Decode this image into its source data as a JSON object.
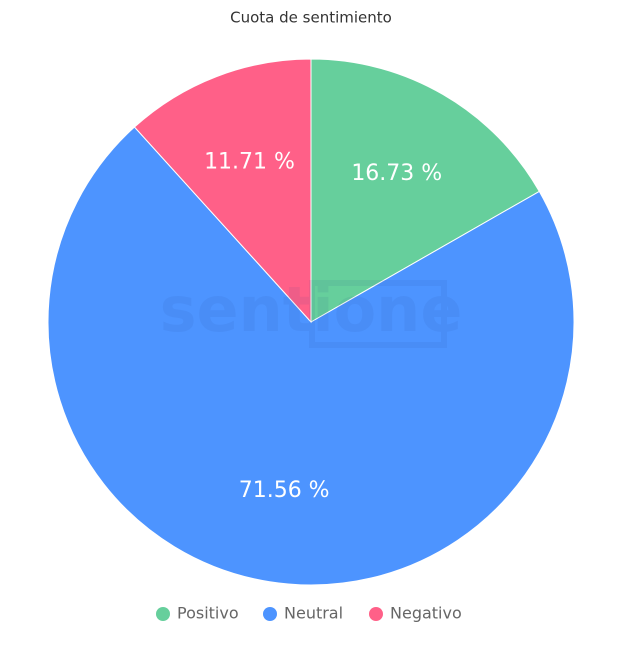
{
  "chart_data": {
    "type": "pie",
    "title": "Cuota de sentimiento",
    "categories": [
      "Positivo",
      "Neutral",
      "Negativo"
    ],
    "values": [
      16.73,
      71.56,
      11.71
    ],
    "value_labels": [
      "16.73 %",
      "71.56 %",
      "11.71 %"
    ],
    "colors": [
      "#66cf9c",
      "#4d94ff",
      "#ff6088"
    ],
    "legend": "bottom",
    "watermark": "sentione"
  }
}
